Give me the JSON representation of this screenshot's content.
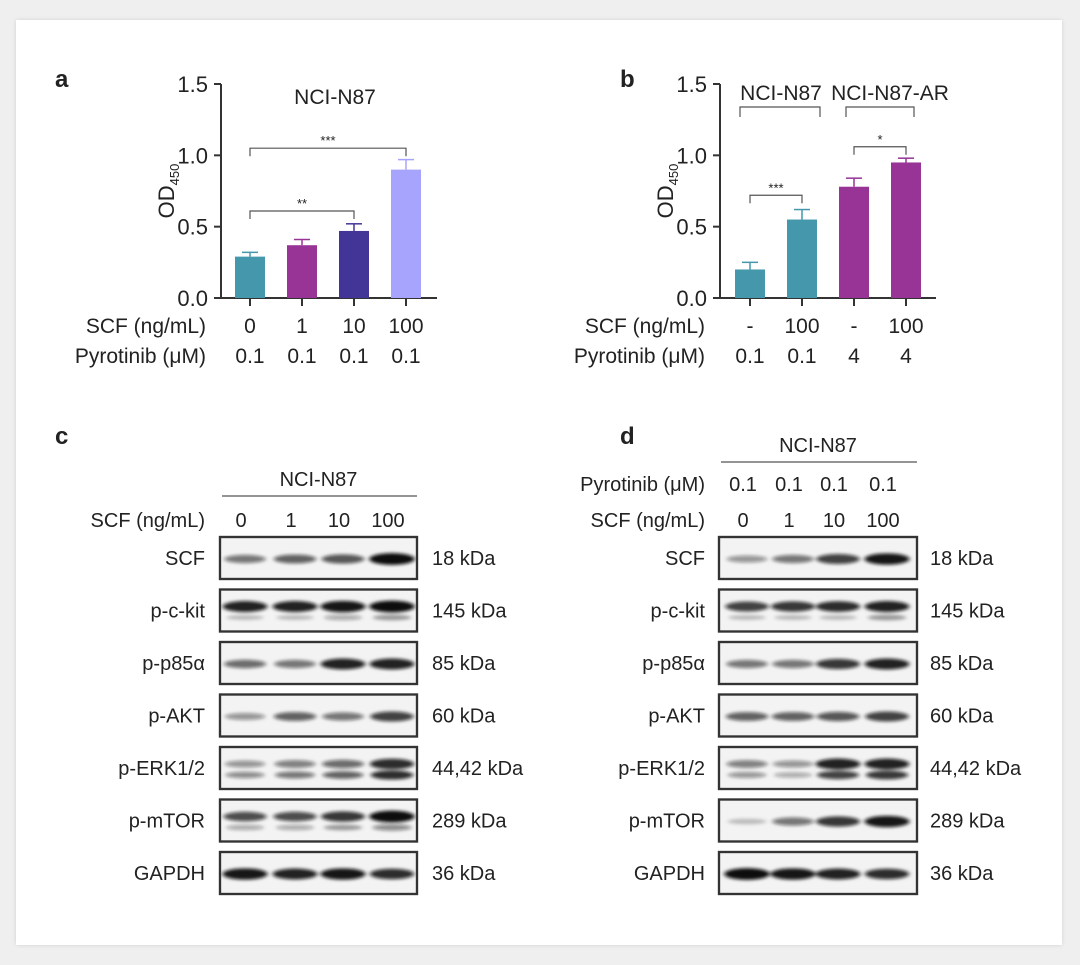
{
  "chart_data": [
    {
      "panel": "a",
      "type": "bar",
      "title": "NCI-N87",
      "ylabel": "OD",
      "ylabel_sub": "450",
      "ylim": [
        0,
        1.5
      ],
      "yticks": [
        "0.0",
        "0.5",
        "1.0",
        "1.5"
      ],
      "row_labels": [
        "SCF (ng/mL)",
        "Pyrotinib (μM)"
      ],
      "categories": [
        [
          "0",
          "0.1"
        ],
        [
          "1",
          "0.1"
        ],
        [
          "10",
          "0.1"
        ],
        [
          "100",
          "0.1"
        ]
      ],
      "values": [
        0.29,
        0.37,
        0.47,
        0.9
      ],
      "errors": [
        0.03,
        0.04,
        0.05,
        0.07
      ],
      "colors": [
        "#4597ab",
        "#973496",
        "#433597",
        "#a7a4fd"
      ],
      "significance": [
        {
          "from": 0,
          "to": 3,
          "label": "***",
          "level": 1.05
        },
        {
          "from": 0,
          "to": 2,
          "label": "**",
          "level": 0.61
        }
      ]
    },
    {
      "panel": "b",
      "type": "bar",
      "group_labels": [
        {
          "label": "NCI-N87",
          "from": 0,
          "to": 1
        },
        {
          "label": "NCI-N87-AR",
          "from": 2,
          "to": 3
        }
      ],
      "ylabel": "OD",
      "ylabel_sub": "450",
      "ylim": [
        0,
        1.5
      ],
      "yticks": [
        "0.0",
        "0.5",
        "1.0",
        "1.5"
      ],
      "row_labels": [
        "SCF (ng/mL)",
        "Pyrotinib (μM)"
      ],
      "categories": [
        [
          "-",
          "0.1"
        ],
        [
          "100",
          "0.1"
        ],
        [
          "-",
          "4"
        ],
        [
          "100",
          "4"
        ]
      ],
      "values": [
        0.2,
        0.55,
        0.78,
        0.95
      ],
      "errors": [
        0.05,
        0.07,
        0.06,
        0.03
      ],
      "colors": [
        "#4597ab",
        "#4597ab",
        "#973496",
        "#973496"
      ],
      "significance": [
        {
          "from": 0,
          "to": 1,
          "label": "***",
          "level": 0.72
        },
        {
          "from": 2,
          "to": 3,
          "label": "*",
          "level": 1.06
        }
      ]
    }
  ],
  "blots": [
    {
      "panel": "c",
      "cell_line": "NCI-N87",
      "header_rows": [
        {
          "label": "SCF (ng/mL)",
          "values": [
            "0",
            "1",
            "10",
            "100"
          ]
        }
      ],
      "rows": [
        {
          "label": "SCF",
          "kda": "18 kDa",
          "main": [
            0.45,
            0.55,
            0.6,
            0.95
          ],
          "lower": null
        },
        {
          "label": "p-c-kit",
          "kda": "145 kDa",
          "main": [
            0.85,
            0.85,
            0.9,
            0.95
          ],
          "lower": [
            0.15,
            0.15,
            0.25,
            0.3
          ]
        },
        {
          "label": "p-p85α",
          "kda": "85 kDa",
          "main": [
            0.5,
            0.45,
            0.85,
            0.85
          ],
          "lower": null
        },
        {
          "label": "p-AKT",
          "kda": "60 kDa",
          "main": [
            0.3,
            0.55,
            0.45,
            0.7
          ],
          "lower": null
        },
        {
          "label": "p-ERK1/2",
          "kda": "44,42 kDa",
          "main": [
            0.3,
            0.4,
            0.5,
            0.8
          ],
          "lower": [
            0.4,
            0.5,
            0.6,
            0.85
          ]
        },
        {
          "label": "p-mTOR",
          "kda": "289 kDa",
          "main": [
            0.65,
            0.65,
            0.75,
            0.95
          ],
          "lower": [
            0.25,
            0.25,
            0.3,
            0.4
          ]
        },
        {
          "label": "GAPDH",
          "kda": "36 kDa",
          "main": [
            0.9,
            0.85,
            0.9,
            0.8
          ],
          "lower": null
        }
      ]
    },
    {
      "panel": "d",
      "cell_line": "NCI-N87",
      "header_rows": [
        {
          "label": "Pyrotinib (μM)",
          "values": [
            "0.1",
            "0.1",
            "0.1",
            "0.1"
          ]
        },
        {
          "label": "SCF (ng/mL)",
          "values": [
            "0",
            "1",
            "10",
            "100"
          ]
        }
      ],
      "rows": [
        {
          "label": "SCF",
          "kda": "18 kDa",
          "main": [
            0.3,
            0.45,
            0.7,
            0.9
          ],
          "lower": null
        },
        {
          "label": "p-c-kit",
          "kda": "145 kDa",
          "main": [
            0.7,
            0.75,
            0.8,
            0.85
          ],
          "lower": [
            0.15,
            0.15,
            0.15,
            0.3
          ]
        },
        {
          "label": "p-p85α",
          "kda": "85 kDa",
          "main": [
            0.45,
            0.45,
            0.75,
            0.85
          ],
          "lower": null
        },
        {
          "label": "p-AKT",
          "kda": "60 kDa",
          "main": [
            0.55,
            0.55,
            0.6,
            0.7
          ],
          "lower": null
        },
        {
          "label": "p-ERK1/2",
          "kda": "44,42 kDa",
          "main": [
            0.4,
            0.3,
            0.85,
            0.85
          ],
          "lower": [
            0.35,
            0.25,
            0.75,
            0.8
          ]
        },
        {
          "label": "p-mTOR",
          "kda": "289 kDa",
          "main": [
            0.08,
            0.45,
            0.75,
            0.9
          ],
          "lower": null
        },
        {
          "label": "GAPDH",
          "kda": "36 kDa",
          "main": [
            0.95,
            0.9,
            0.85,
            0.8
          ],
          "lower": null
        }
      ]
    }
  ]
}
